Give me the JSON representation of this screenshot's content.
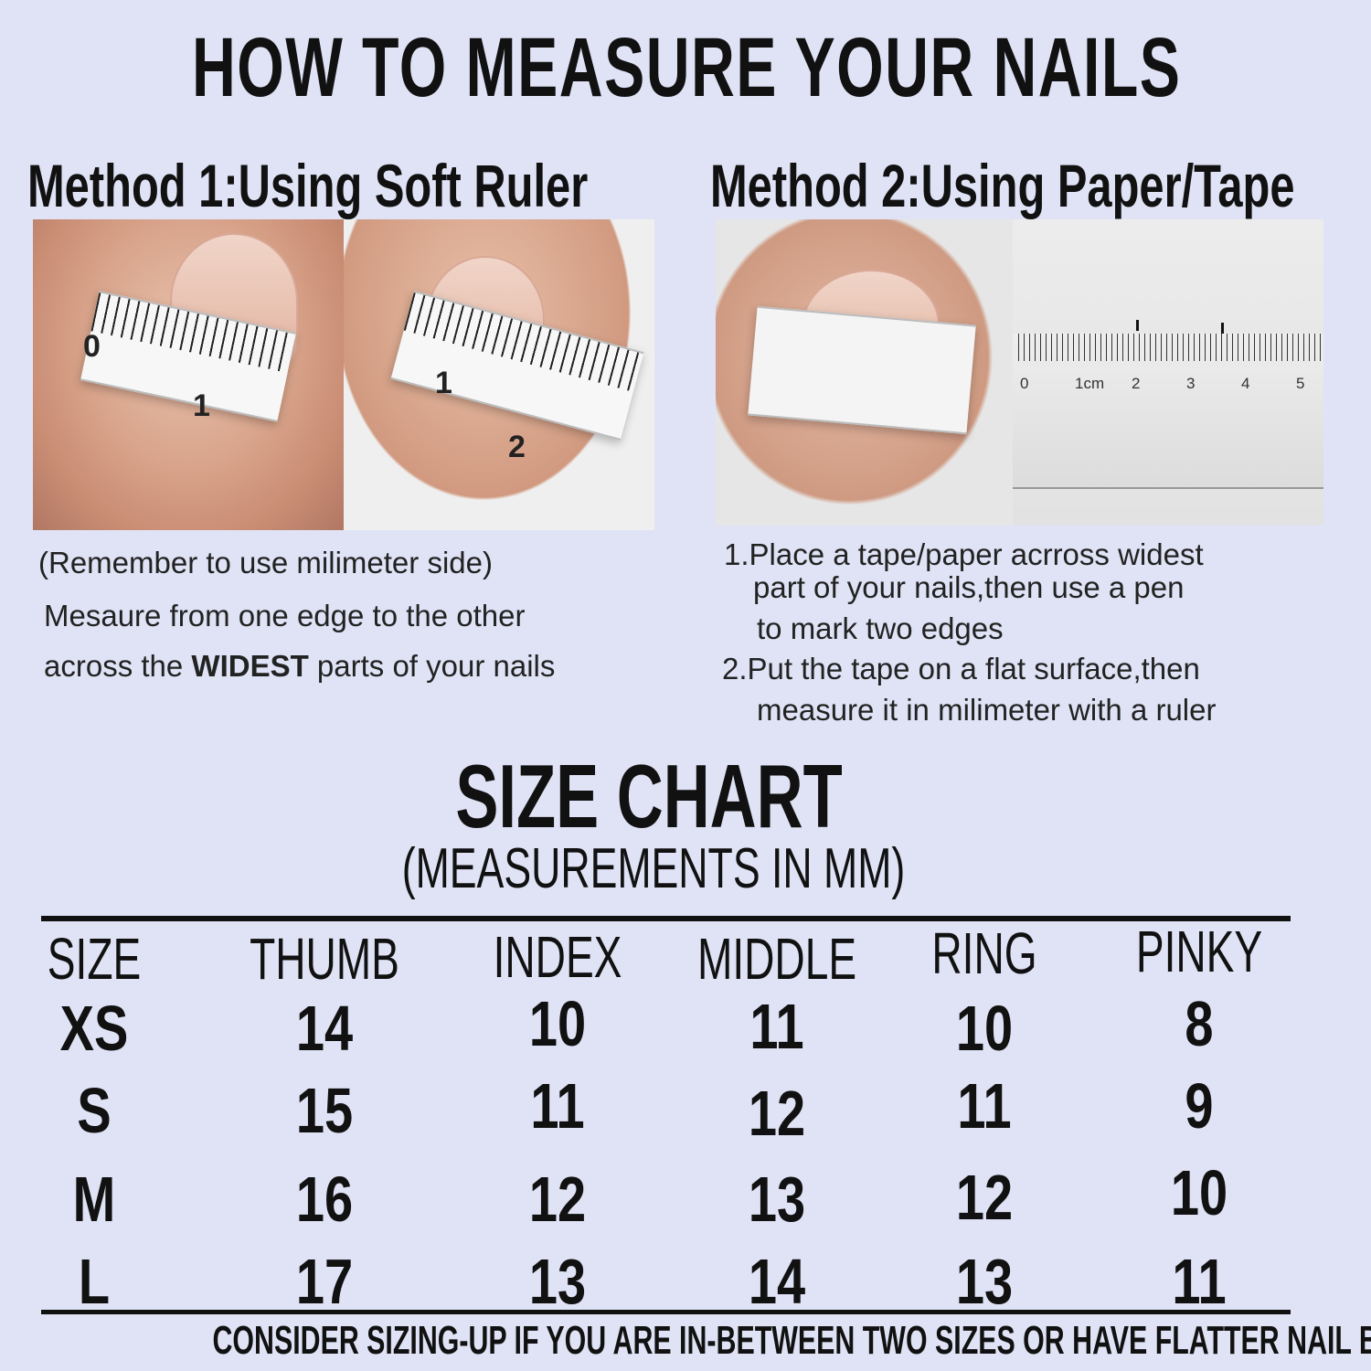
{
  "title": "HOW TO MEASURE YOUR NAILS",
  "method1": {
    "heading": "Method 1:Using Soft Ruler",
    "photo_labels": [
      "0",
      "1",
      "1",
      "2"
    ],
    "note": "(Remember to use milimeter side)",
    "line1": "Mesaure from one edge to the other",
    "line2_pre": "across the ",
    "line2_bold": "WIDEST",
    "line2_post": " parts of your nails"
  },
  "method2": {
    "heading": "Method 2:Using Paper/Tape",
    "ruler_labels": [
      "0",
      "1cm",
      "2",
      "3",
      "4",
      "5"
    ],
    "steps": [
      "1.Place a tape/paper acrross widest",
      "part of your nails,then use a pen",
      "to mark two edges",
      "2.Put the tape on a flat surface,then",
      "measure it in milimeter with a ruler"
    ]
  },
  "size_chart": {
    "title": "SIZE CHART",
    "subtitle": "(MEASUREMENTS IN MM)",
    "headers": [
      "SIZE",
      "THUMB",
      "INDEX",
      "MIDDLE",
      "RING",
      "PINKY"
    ],
    "rows": [
      [
        "XS",
        "14",
        "10",
        "11",
        "10",
        "8"
      ],
      [
        "S",
        "15",
        "11",
        "12",
        "11",
        "9"
      ],
      [
        "M",
        "16",
        "12",
        "13",
        "12",
        "10"
      ],
      [
        "L",
        "17",
        "13",
        "14",
        "13",
        "11"
      ]
    ]
  },
  "footer": "CONSIDER SIZING-UP IF YOU ARE IN-BETWEEN TWO SIZES OR HAVE FLATTER NAIL BEDS",
  "colors": {
    "background": "#dfe3f5",
    "text": "#111111"
  }
}
